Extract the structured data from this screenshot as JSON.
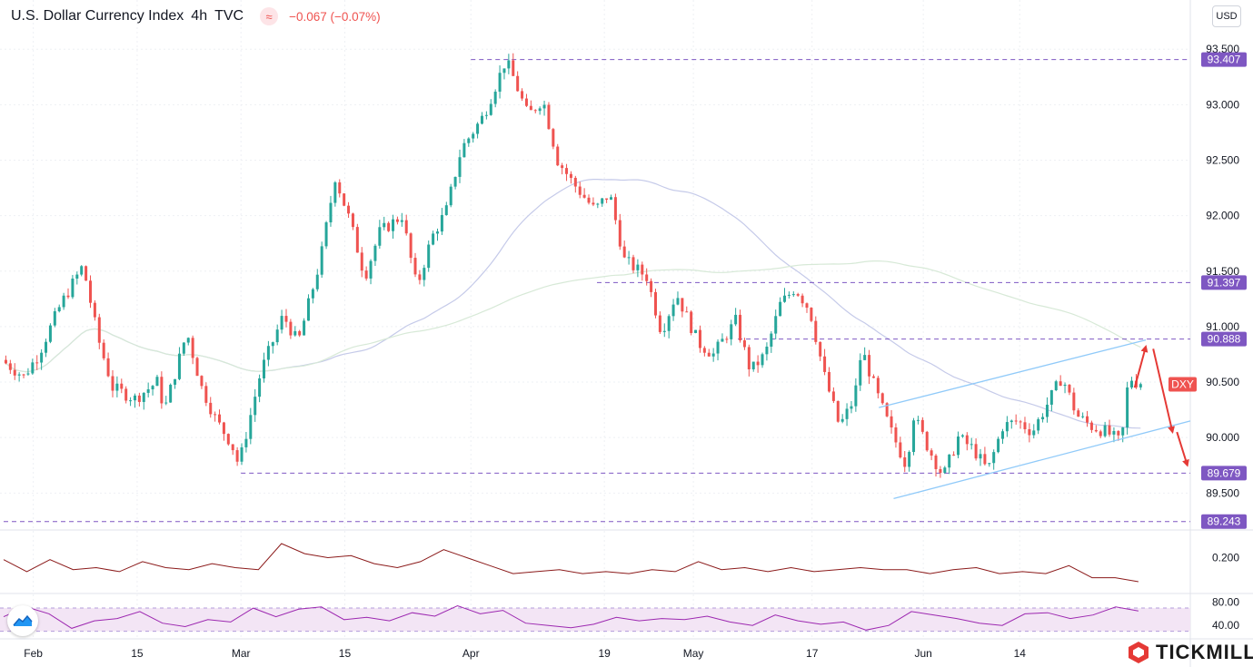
{
  "header": {
    "title": "U.S. Dollar Currency Index",
    "interval": "4h",
    "source": "TVC",
    "indicator_icon": "wave-approx-icon",
    "change": "−0.067 (−0.07%)"
  },
  "currency_button": "USD",
  "brand": {
    "name": "TICKMILL",
    "icon": "tickmill-logo-icon"
  },
  "colors": {
    "up": "#26a69a",
    "down": "#ef5350",
    "level_line": "#7e57c2",
    "level_label_bg": "#7e57c2",
    "channel": "#90caf9",
    "arrows": "#e53935",
    "ma_fast": "#c5cae9",
    "ma_slow": "#d7e9d7",
    "osc_line": "#8b1a1a",
    "rsi_line": "#9c27b0",
    "rsi_band": "#f3e5f5",
    "symbol_tag": "#ef5350"
  },
  "chart_data": [
    {
      "type": "candlestick",
      "title": "U.S. Dollar Currency Index",
      "symbol_tag": "DXY",
      "x_ticks": [
        "Feb",
        "15",
        "Mar",
        "15",
        "Apr",
        "19",
        "May",
        "17",
        "Jun",
        "14"
      ],
      "x_tick_days": [
        0,
        14,
        28,
        42,
        59,
        77,
        89,
        105,
        120,
        133
      ],
      "y_ticks": [
        "93.500",
        "93.000",
        "92.500",
        "92.000",
        "91.500",
        "91.000",
        "90.500",
        "90.000",
        "89.500"
      ],
      "ylim": [
        89.2,
        93.6
      ],
      "xlim_days": [
        -4,
        156
      ],
      "levels": [
        {
          "label": "93.407",
          "value": 93.407,
          "from_day": 59
        },
        {
          "label": "91.397",
          "value": 91.397,
          "from_day": 76
        },
        {
          "label": "90.888",
          "value": 90.888,
          "from_day": 95
        },
        {
          "label": "89.679",
          "value": 89.679,
          "from_day": 28
        },
        {
          "label": "89.243",
          "value": 89.243,
          "from_day": -4
        }
      ],
      "anchors": [
        {
          "day": -4,
          "value": 90.7
        },
        {
          "day": -1,
          "value": 90.55
        },
        {
          "day": 1,
          "value": 90.75
        },
        {
          "day": 4,
          "value": 91.2
        },
        {
          "day": 7,
          "value": 91.55
        },
        {
          "day": 9,
          "value": 90.9
        },
        {
          "day": 11,
          "value": 90.45
        },
        {
          "day": 14,
          "value": 90.35
        },
        {
          "day": 17,
          "value": 90.5
        },
        {
          "day": 18,
          "value": 90.25
        },
        {
          "day": 21,
          "value": 90.95
        },
        {
          "day": 23,
          "value": 90.45
        },
        {
          "day": 25,
          "value": 90.15
        },
        {
          "day": 27,
          "value": 89.95
        },
        {
          "day": 28,
          "value": 89.75
        },
        {
          "day": 31,
          "value": 90.6
        },
        {
          "day": 34,
          "value": 91.1
        },
        {
          "day": 36,
          "value": 90.85
        },
        {
          "day": 39,
          "value": 91.6
        },
        {
          "day": 41,
          "value": 92.35
        },
        {
          "day": 43,
          "value": 91.95
        },
        {
          "day": 45,
          "value": 91.45
        },
        {
          "day": 47,
          "value": 91.85
        },
        {
          "day": 50,
          "value": 92.0
        },
        {
          "day": 52,
          "value": 91.35
        },
        {
          "day": 54,
          "value": 91.8
        },
        {
          "day": 56,
          "value": 92.05
        },
        {
          "day": 58,
          "value": 92.6
        },
        {
          "day": 61,
          "value": 92.9
        },
        {
          "day": 64,
          "value": 93.4
        },
        {
          "day": 65,
          "value": 93.25
        },
        {
          "day": 67,
          "value": 92.9
        },
        {
          "day": 69,
          "value": 93.05
        },
        {
          "day": 71,
          "value": 92.5
        },
        {
          "day": 73,
          "value": 92.3
        },
        {
          "day": 76,
          "value": 92.05
        },
        {
          "day": 78,
          "value": 92.2
        },
        {
          "day": 80,
          "value": 91.6
        },
        {
          "day": 83,
          "value": 91.45
        },
        {
          "day": 85,
          "value": 90.95
        },
        {
          "day": 87,
          "value": 91.3
        },
        {
          "day": 90,
          "value": 90.85
        },
        {
          "day": 92,
          "value": 90.75
        },
        {
          "day": 95,
          "value": 91.05
        },
        {
          "day": 97,
          "value": 90.6
        },
        {
          "day": 99,
          "value": 90.75
        },
        {
          "day": 101,
          "value": 91.2
        },
        {
          "day": 103,
          "value": 91.35
        },
        {
          "day": 105,
          "value": 91.15
        },
        {
          "day": 107,
          "value": 90.55
        },
        {
          "day": 109,
          "value": 90.1
        },
        {
          "day": 111,
          "value": 90.35
        },
        {
          "day": 112,
          "value": 90.8
        },
        {
          "day": 114,
          "value": 90.4
        },
        {
          "day": 116,
          "value": 90.05
        },
        {
          "day": 118,
          "value": 89.75
        },
        {
          "day": 119,
          "value": 90.2
        },
        {
          "day": 121,
          "value": 89.9
        },
        {
          "day": 123,
          "value": 89.65
        },
        {
          "day": 125,
          "value": 90.0
        },
        {
          "day": 127,
          "value": 89.9
        },
        {
          "day": 129,
          "value": 89.7
        },
        {
          "day": 131,
          "value": 90.1
        },
        {
          "day": 133,
          "value": 90.15
        },
        {
          "day": 135,
          "value": 90.05
        },
        {
          "day": 137,
          "value": 90.3
        },
        {
          "day": 139,
          "value": 90.55
        },
        {
          "day": 141,
          "value": 90.2
        },
        {
          "day": 143,
          "value": 90.1
        },
        {
          "day": 145,
          "value": 90.05
        },
        {
          "day": 147,
          "value": 89.95
        },
        {
          "day": 148,
          "value": 90.55
        },
        {
          "day": 149,
          "value": 90.5
        }
      ],
      "trend_channel": {
        "upper": [
          {
            "day": 114,
            "value": 90.27
          },
          {
            "day": 150,
            "value": 90.88
          }
        ],
        "lower": [
          {
            "day": 116,
            "value": 89.45
          },
          {
            "day": 156,
            "value": 90.15
          }
        ]
      },
      "arrows": [
        {
          "from": {
            "day": 148.5,
            "value": 90.45
          },
          "to": {
            "day": 150,
            "value": 90.82
          }
        },
        {
          "from": {
            "day": 151,
            "value": 90.8
          },
          "to": {
            "day": 153.6,
            "value": 90.05
          }
        },
        {
          "from": {
            "day": 154.2,
            "value": 90.05
          },
          "to": {
            "day": 155.6,
            "value": 89.75
          }
        }
      ]
    },
    {
      "type": "line",
      "y_ticks": [
        "0.200"
      ],
      "ylim": [
        0.03,
        0.32
      ],
      "series": [
        {
          "values": [
            0.19,
            0.13,
            0.19,
            0.14,
            0.15,
            0.13,
            0.18,
            0.15,
            0.14,
            0.17,
            0.15,
            0.14,
            0.27,
            0.22,
            0.2,
            0.21,
            0.17,
            0.15,
            0.18,
            0.24,
            0.2,
            0.16,
            0.12,
            0.13,
            0.14,
            0.12,
            0.13,
            0.12,
            0.14,
            0.13,
            0.18,
            0.14,
            0.15,
            0.13,
            0.15,
            0.13,
            0.14,
            0.15,
            0.14,
            0.14,
            0.12,
            0.14,
            0.15,
            0.12,
            0.13,
            0.12,
            0.16,
            0.1,
            0.1,
            0.08
          ]
        }
      ]
    },
    {
      "type": "line",
      "y_ticks": [
        "80.00",
        "40.00"
      ],
      "ylim": [
        20,
        92
      ],
      "band": [
        30,
        70
      ],
      "series": [
        {
          "values": [
            55,
            72,
            60,
            35,
            48,
            52,
            64,
            44,
            38,
            50,
            46,
            70,
            55,
            68,
            72,
            50,
            54,
            48,
            62,
            56,
            74,
            60,
            66,
            44,
            40,
            36,
            42,
            54,
            48,
            52,
            50,
            56,
            46,
            40,
            58,
            48,
            42,
            46,
            32,
            40,
            64,
            58,
            52,
            44,
            40,
            60,
            62,
            52,
            58,
            72,
            65
          ]
        }
      ]
    }
  ]
}
